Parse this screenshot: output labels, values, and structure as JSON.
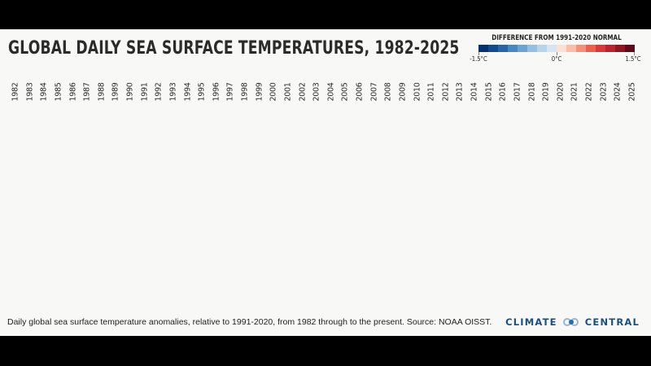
{
  "chart_data": {
    "type": "heatmap",
    "title": "GLOBAL DAILY SEA SURFACE TEMPERATURES, 1982-2025",
    "xlabel": "",
    "ylabel": "",
    "categories": [
      "1982",
      "1983",
      "1984",
      "1985",
      "1986",
      "1987",
      "1988",
      "1989",
      "1990",
      "1991",
      "1992",
      "1993",
      "1994",
      "1995",
      "1996",
      "1997",
      "1998",
      "1999",
      "2000",
      "2001",
      "2002",
      "2003",
      "2004",
      "2005",
      "2006",
      "2007",
      "2008",
      "2009",
      "2010",
      "2011",
      "2012",
      "2013",
      "2014",
      "2015",
      "2016",
      "2017",
      "2018",
      "2019",
      "2020",
      "2021",
      "2022",
      "2023",
      "2024",
      "2025"
    ],
    "values": [],
    "legend": {
      "title": "DIFFERENCE FROM 1991-2020 NORMAL",
      "min_label": "-1.5°C",
      "mid_label": "0°C",
      "max_label": "1.5°C",
      "range": [
        -1.5,
        1.5
      ],
      "position": "top-right",
      "colors": [
        "#08306b",
        "#124a8a",
        "#2a63a6",
        "#4a86c0",
        "#6da3d1",
        "#96bfdf",
        "#b9d4ea",
        "#d6e5f3",
        "#fbe0d6",
        "#f7bfa8",
        "#f2917a",
        "#e8604f",
        "#d6393a",
        "#b8232e",
        "#8f1424",
        "#5e0a18"
      ]
    },
    "annotations": [],
    "grid": false
  },
  "header": {
    "title": "GLOBAL DAILY SEA SURFACE TEMPERATURES, 1982-2025"
  },
  "footer": {
    "caption": "Daily global sea surface temperature anomalies, relative to 1991-2020, from 1982 through to the present. Source: NOAA OISST.",
    "brand_left": "CLIMATE",
    "brand_right": "CENTRAL",
    "brand_color": "#1d4f7a"
  }
}
